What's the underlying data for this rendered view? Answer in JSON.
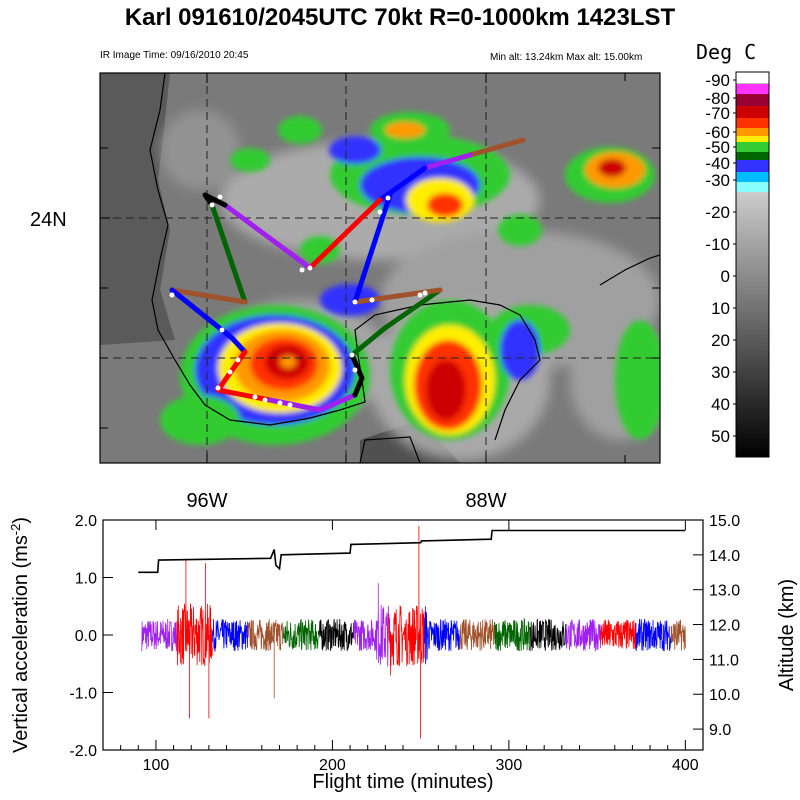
{
  "header": {
    "title": "Karl 091610/2045UTC 70kt  R=0-1000km 1423LST",
    "ir_time": "IR Image Time: 09/16/2010 20:45",
    "alt_range": "Min alt: 13.24km  Max alt: 15.00km"
  },
  "map": {
    "lat_labels": [
      "24N"
    ],
    "lon_labels": [
      "96W",
      "88W"
    ]
  },
  "colorbar": {
    "title": "Deg C",
    "labels": [
      "-90",
      "-80",
      "-70",
      "-60",
      "-50",
      "-40",
      "-30",
      "-20",
      "-10",
      "0",
      "10",
      "20",
      "30",
      "40",
      "50"
    ],
    "colors": {
      "-90": "#ffffff",
      "-80": "#ff33ff",
      "-75": "#990033",
      "-70": "#cc0000",
      "-65": "#ff3300",
      "-60": "#ff9900",
      "-55": "#ffee00",
      "-50": "#33cc33",
      "-45": "#006600",
      "-40": "#3333ff",
      "-35": "#00bbff",
      "-30": "#88ffff"
    }
  },
  "chart_data": {
    "type": "line",
    "xlabel": "Flight time (minutes)",
    "ylabel": "Vertical acceleration (ms-2)",
    "y2label": "Altitude (km)",
    "xlim": [
      70,
      410
    ],
    "ylim": [
      -2.0,
      2.0
    ],
    "y2lim": [
      8.4,
      15.0
    ],
    "xticks": [
      "100",
      "200",
      "300",
      "400"
    ],
    "yticks": [
      "2.0",
      "1.0",
      "0.0",
      "-1.0",
      "-2.0"
    ],
    "y2ticks": [
      "15.0",
      "14.0",
      "13.0",
      "12.0",
      "11.0",
      "10.0",
      "9.0"
    ],
    "segment_colors": [
      "#a020f0",
      "#ff0000",
      "#0000ff",
      "#a0522d",
      "#006400",
      "#000000"
    ],
    "segment_minutes": 20,
    "accel_start": 92,
    "accel_end": 400,
    "altitude": {
      "x": [
        90,
        101,
        101.5,
        165,
        167,
        168,
        170,
        171,
        210,
        210.5,
        250,
        250.5,
        290,
        290.5,
        400
      ],
      "y": [
        13.5,
        13.5,
        13.85,
        13.9,
        14.15,
        13.7,
        13.6,
        14.0,
        14.05,
        14.3,
        14.35,
        14.4,
        14.45,
        14.7,
        14.7
      ]
    },
    "spikes": [
      {
        "x": 117,
        "y": 1.3
      },
      {
        "x": 119,
        "y": -1.45
      },
      {
        "x": 128,
        "y": 1.25
      },
      {
        "x": 130,
        "y": -1.45
      },
      {
        "x": 167,
        "y": -1.1
      },
      {
        "x": 226,
        "y": 0.9
      },
      {
        "x": 249,
        "y": 1.9
      },
      {
        "x": 250,
        "y": -1.8
      },
      {
        "x": 233,
        "y": -0.7
      }
    ]
  }
}
